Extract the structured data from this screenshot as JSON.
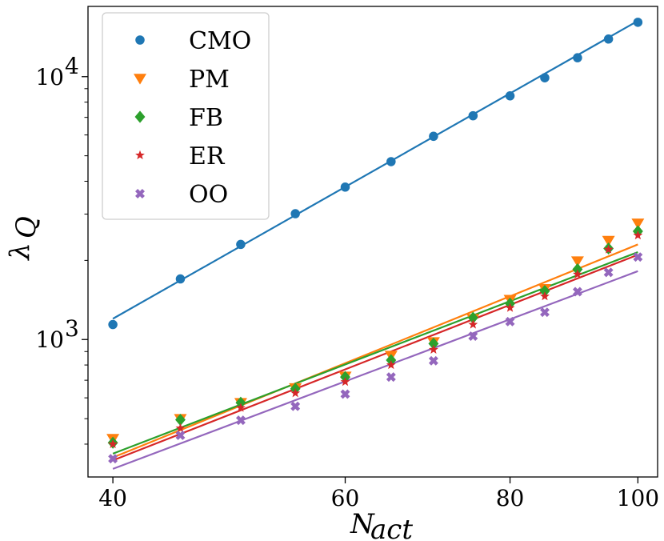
{
  "chart_data": {
    "type": "scatter",
    "title": "",
    "xlabel": "N",
    "xlabel_sub": "act",
    "ylabel": "λ",
    "ylabel_sub": "Q",
    "xscale": "log",
    "yscale": "log",
    "xlim": [
      38.3,
      103.5
    ],
    "ylim": [
      300,
      18500
    ],
    "xticks": [
      40,
      60,
      80,
      100
    ],
    "xtick_labels": [
      "40",
      "60",
      "80",
      "100"
    ],
    "yticks": [
      1000,
      10000
    ],
    "ytick_labels": [
      {
        "base": "10",
        "exp": "3"
      },
      {
        "base": "10",
        "exp": "4"
      }
    ],
    "legend_position": "upper-left",
    "x": [
      40,
      45,
      50,
      55,
      60,
      65,
      70,
      75,
      80,
      85,
      90,
      95,
      100
    ],
    "series": [
      {
        "name": "CMO",
        "color": "#1f77b4",
        "marker": "circle",
        "values": [
          1140,
          1700,
          2300,
          3010,
          3800,
          4750,
          5930,
          7100,
          8450,
          9900,
          11800,
          13900,
          16100
        ],
        "fit": [
          1200,
          16300
        ]
      },
      {
        "name": "PM",
        "color": "#ff7f0e",
        "marker": "triangle-down",
        "values": [
          420,
          500,
          575,
          655,
          725,
          870,
          980,
          1200,
          1420,
          1560,
          1990,
          2380,
          2770
        ],
        "fit": [
          356,
          2300
        ]
      },
      {
        "name": "FB",
        "color": "#2ca02c",
        "marker": "diamond",
        "values": [
          405,
          495,
          575,
          650,
          720,
          835,
          965,
          1210,
          1370,
          1530,
          1850,
          2220,
          2580
        ],
        "fit": [
          368,
          2150
        ]
      },
      {
        "name": "ER",
        "color": "#d62728",
        "marker": "star",
        "values": [
          400,
          460,
          550,
          625,
          690,
          800,
          915,
          1140,
          1320,
          1460,
          1770,
          2200,
          2490
        ],
        "fit": [
          347,
          2100
        ]
      },
      {
        "name": "OO",
        "color": "#9467bd",
        "marker": "x",
        "values": [
          352,
          432,
          493,
          557,
          620,
          720,
          830,
          1030,
          1170,
          1270,
          1520,
          1800,
          2060
        ],
        "fit": [
          322,
          1820
        ]
      }
    ]
  }
}
